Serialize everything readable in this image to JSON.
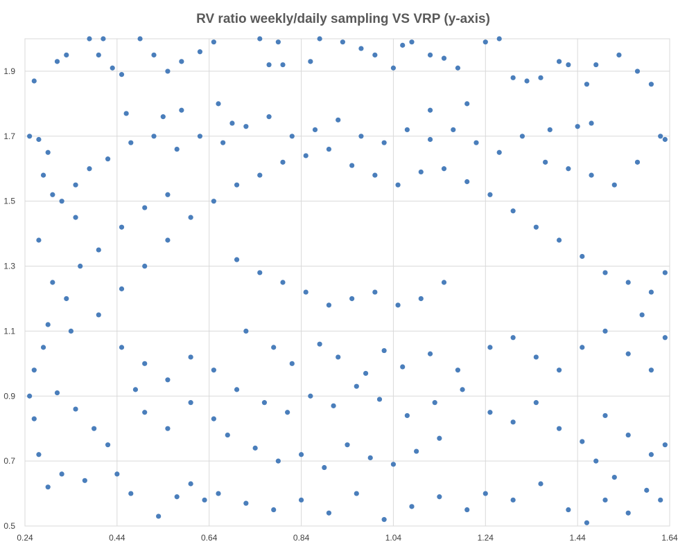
{
  "chart_data": {
    "type": "scatter",
    "title": "RV ratio weekly/daily sampling VS VRP (y-axis)",
    "xlabel": "",
    "ylabel": "",
    "xlim": [
      0.24,
      1.64
    ],
    "ylim": [
      0.5,
      2.0
    ],
    "x_ticks": [
      "0.24",
      "0.44",
      "0.64",
      "0.84",
      "1.04",
      "1.24",
      "1.44",
      "1.64"
    ],
    "y_ticks": [
      "0.5",
      "0.7",
      "0.9",
      "1.1",
      "1.3",
      "1.5",
      "1.7",
      "1.9"
    ],
    "grid": true,
    "legend": "none",
    "marker_color": "#4a7ebb",
    "series": [
      {
        "points": [
          [
            0.25,
            1.7
          ],
          [
            0.26,
            1.87
          ],
          [
            0.27,
            1.69
          ],
          [
            0.31,
            1.93
          ],
          [
            0.33,
            1.95
          ],
          [
            0.29,
            1.65
          ],
          [
            0.28,
            1.58
          ],
          [
            0.3,
            1.52
          ],
          [
            0.32,
            1.5
          ],
          [
            0.35,
            1.55
          ],
          [
            0.38,
            2.0
          ],
          [
            0.4,
            1.95
          ],
          [
            0.41,
            2.0
          ],
          [
            0.43,
            1.91
          ],
          [
            0.45,
            1.89
          ],
          [
            0.49,
            2.0
          ],
          [
            0.46,
            1.77
          ],
          [
            0.52,
            1.95
          ],
          [
            0.55,
            1.9
          ],
          [
            0.58,
            1.93
          ],
          [
            0.62,
            1.96
          ],
          [
            0.65,
            1.99
          ],
          [
            0.66,
            1.8
          ],
          [
            0.69,
            1.74
          ],
          [
            0.75,
            2.0
          ],
          [
            0.79,
            1.99
          ],
          [
            0.77,
            1.92
          ],
          [
            0.8,
            1.92
          ],
          [
            0.86,
            1.93
          ],
          [
            0.88,
            2.0
          ],
          [
            0.93,
            1.99
          ],
          [
            0.97,
            1.97
          ],
          [
            1.0,
            1.95
          ],
          [
            1.04,
            1.91
          ],
          [
            1.06,
            1.98
          ],
          [
            1.08,
            1.99
          ],
          [
            1.12,
            1.95
          ],
          [
            1.15,
            1.94
          ],
          [
            1.18,
            1.91
          ],
          [
            1.24,
            1.99
          ],
          [
            1.27,
            2.0
          ],
          [
            1.3,
            1.88
          ],
          [
            1.33,
            1.87
          ],
          [
            1.36,
            1.88
          ],
          [
            1.4,
            1.93
          ],
          [
            1.42,
            1.92
          ],
          [
            1.46,
            1.86
          ],
          [
            1.48,
            1.92
          ],
          [
            1.53,
            1.95
          ],
          [
            1.57,
            1.9
          ],
          [
            1.6,
            1.86
          ],
          [
            1.62,
            1.7
          ],
          [
            1.63,
            1.69
          ],
          [
            1.38,
            1.72
          ],
          [
            1.44,
            1.73
          ],
          [
            1.47,
            1.74
          ],
          [
            1.12,
            1.78
          ],
          [
            1.2,
            1.8
          ],
          [
            0.58,
            1.78
          ],
          [
            0.54,
            1.76
          ],
          [
            0.27,
            1.38
          ],
          [
            0.3,
            1.25
          ],
          [
            0.33,
            1.2
          ],
          [
            0.36,
            1.3
          ],
          [
            0.28,
            1.05
          ],
          [
            0.26,
            0.98
          ],
          [
            0.31,
            0.91
          ],
          [
            0.35,
            0.86
          ],
          [
            0.39,
            0.8
          ],
          [
            0.42,
            0.75
          ],
          [
            0.27,
            0.72
          ],
          [
            0.29,
            0.62
          ],
          [
            0.32,
            0.66
          ],
          [
            0.37,
            0.64
          ],
          [
            0.44,
            0.66
          ],
          [
            0.47,
            0.6
          ],
          [
            0.53,
            0.53
          ],
          [
            0.57,
            0.59
          ],
          [
            0.6,
            0.63
          ],
          [
            0.63,
            0.58
          ],
          [
            0.26,
            0.83
          ],
          [
            0.25,
            0.9
          ],
          [
            0.29,
            1.12
          ],
          [
            0.34,
            1.1
          ],
          [
            0.4,
            1.15
          ],
          [
            0.45,
            1.23
          ],
          [
            0.5,
            1.3
          ],
          [
            0.55,
            1.38
          ],
          [
            0.6,
            1.45
          ],
          [
            0.65,
            1.5
          ],
          [
            0.7,
            1.55
          ],
          [
            0.75,
            1.58
          ],
          [
            0.8,
            1.62
          ],
          [
            0.85,
            1.64
          ],
          [
            0.9,
            1.66
          ],
          [
            0.95,
            1.61
          ],
          [
            1.0,
            1.58
          ],
          [
            1.05,
            1.55
          ],
          [
            1.1,
            1.59
          ],
          [
            1.15,
            1.6
          ],
          [
            1.2,
            1.56
          ],
          [
            1.25,
            1.52
          ],
          [
            1.3,
            1.47
          ],
          [
            1.35,
            1.42
          ],
          [
            1.4,
            1.38
          ],
          [
            1.45,
            1.33
          ],
          [
            1.5,
            1.28
          ],
          [
            1.55,
            1.25
          ],
          [
            1.6,
            1.22
          ],
          [
            1.63,
            1.28
          ],
          [
            0.7,
            1.32
          ],
          [
            0.75,
            1.28
          ],
          [
            0.8,
            1.25
          ],
          [
            0.85,
            1.22
          ],
          [
            0.9,
            1.18
          ],
          [
            0.95,
            1.2
          ],
          [
            1.0,
            1.22
          ],
          [
            1.05,
            1.18
          ],
          [
            1.1,
            1.2
          ],
          [
            1.15,
            1.25
          ],
          [
            0.72,
            1.1
          ],
          [
            0.78,
            1.05
          ],
          [
            0.82,
            1.0
          ],
          [
            0.88,
            1.06
          ],
          [
            0.92,
            1.02
          ],
          [
            0.98,
            0.97
          ],
          [
            1.02,
            1.04
          ],
          [
            1.06,
            0.99
          ],
          [
            1.12,
            1.03
          ],
          [
            1.18,
            0.98
          ],
          [
            0.7,
            0.92
          ],
          [
            0.76,
            0.88
          ],
          [
            0.81,
            0.85
          ],
          [
            0.86,
            0.9
          ],
          [
            0.91,
            0.87
          ],
          [
            0.96,
            0.93
          ],
          [
            1.01,
            0.89
          ],
          [
            1.07,
            0.84
          ],
          [
            1.13,
            0.88
          ],
          [
            1.19,
            0.92
          ],
          [
            0.68,
            0.78
          ],
          [
            0.74,
            0.74
          ],
          [
            0.79,
            0.7
          ],
          [
            0.84,
            0.72
          ],
          [
            0.89,
            0.68
          ],
          [
            0.94,
            0.75
          ],
          [
            0.99,
            0.71
          ],
          [
            1.04,
            0.69
          ],
          [
            1.09,
            0.73
          ],
          [
            1.14,
            0.77
          ],
          [
            0.66,
            0.6
          ],
          [
            0.72,
            0.57
          ],
          [
            0.78,
            0.55
          ],
          [
            0.84,
            0.58
          ],
          [
            0.9,
            0.54
          ],
          [
            0.96,
            0.6
          ],
          [
            1.02,
            0.52
          ],
          [
            1.08,
            0.56
          ],
          [
            1.14,
            0.59
          ],
          [
            1.2,
            0.55
          ],
          [
            1.24,
            0.6
          ],
          [
            1.3,
            0.58
          ],
          [
            1.36,
            0.63
          ],
          [
            1.42,
            0.55
          ],
          [
            1.46,
            0.51
          ],
          [
            1.5,
            0.58
          ],
          [
            1.55,
            0.54
          ],
          [
            1.59,
            0.61
          ],
          [
            1.62,
            0.58
          ],
          [
            1.52,
            0.65
          ],
          [
            1.25,
            1.05
          ],
          [
            1.3,
            1.08
          ],
          [
            1.35,
            1.02
          ],
          [
            1.4,
            0.98
          ],
          [
            1.45,
            1.05
          ],
          [
            1.5,
            1.1
          ],
          [
            1.55,
            1.03
          ],
          [
            1.6,
            0.98
          ],
          [
            1.63,
            1.08
          ],
          [
            1.58,
            1.15
          ],
          [
            1.25,
            0.85
          ],
          [
            1.3,
            0.82
          ],
          [
            1.35,
            0.88
          ],
          [
            1.4,
            0.8
          ],
          [
            1.45,
            0.76
          ],
          [
            1.5,
            0.84
          ],
          [
            1.55,
            0.78
          ],
          [
            1.6,
            0.72
          ],
          [
            1.63,
            0.75
          ],
          [
            1.48,
            0.7
          ],
          [
            0.45,
            1.05
          ],
          [
            0.5,
            1.0
          ],
          [
            0.55,
            0.95
          ],
          [
            0.6,
            1.02
          ],
          [
            0.65,
            0.98
          ],
          [
            0.5,
            0.85
          ],
          [
            0.55,
            0.8
          ],
          [
            0.6,
            0.88
          ],
          [
            0.65,
            0.83
          ],
          [
            0.48,
            0.92
          ],
          [
            0.4,
            1.35
          ],
          [
            0.45,
            1.42
          ],
          [
            0.5,
            1.48
          ],
          [
            0.55,
            1.52
          ],
          [
            0.35,
            1.45
          ],
          [
            0.38,
            1.6
          ],
          [
            0.42,
            1.63
          ],
          [
            0.47,
            1.68
          ],
          [
            0.52,
            1.7
          ],
          [
            0.57,
            1.66
          ],
          [
            0.62,
            1.7
          ],
          [
            0.67,
            1.68
          ],
          [
            0.72,
            1.73
          ],
          [
            0.77,
            1.76
          ],
          [
            0.82,
            1.7
          ],
          [
            0.87,
            1.72
          ],
          [
            0.92,
            1.75
          ],
          [
            0.97,
            1.7
          ],
          [
            1.02,
            1.68
          ],
          [
            1.07,
            1.72
          ],
          [
            1.12,
            1.69
          ],
          [
            1.17,
            1.72
          ],
          [
            1.22,
            1.68
          ],
          [
            1.27,
            1.65
          ],
          [
            1.32,
            1.7
          ],
          [
            1.37,
            1.62
          ],
          [
            1.42,
            1.6
          ],
          [
            1.47,
            1.58
          ],
          [
            1.52,
            1.55
          ],
          [
            1.57,
            1.62
          ]
        ]
      }
    ]
  }
}
